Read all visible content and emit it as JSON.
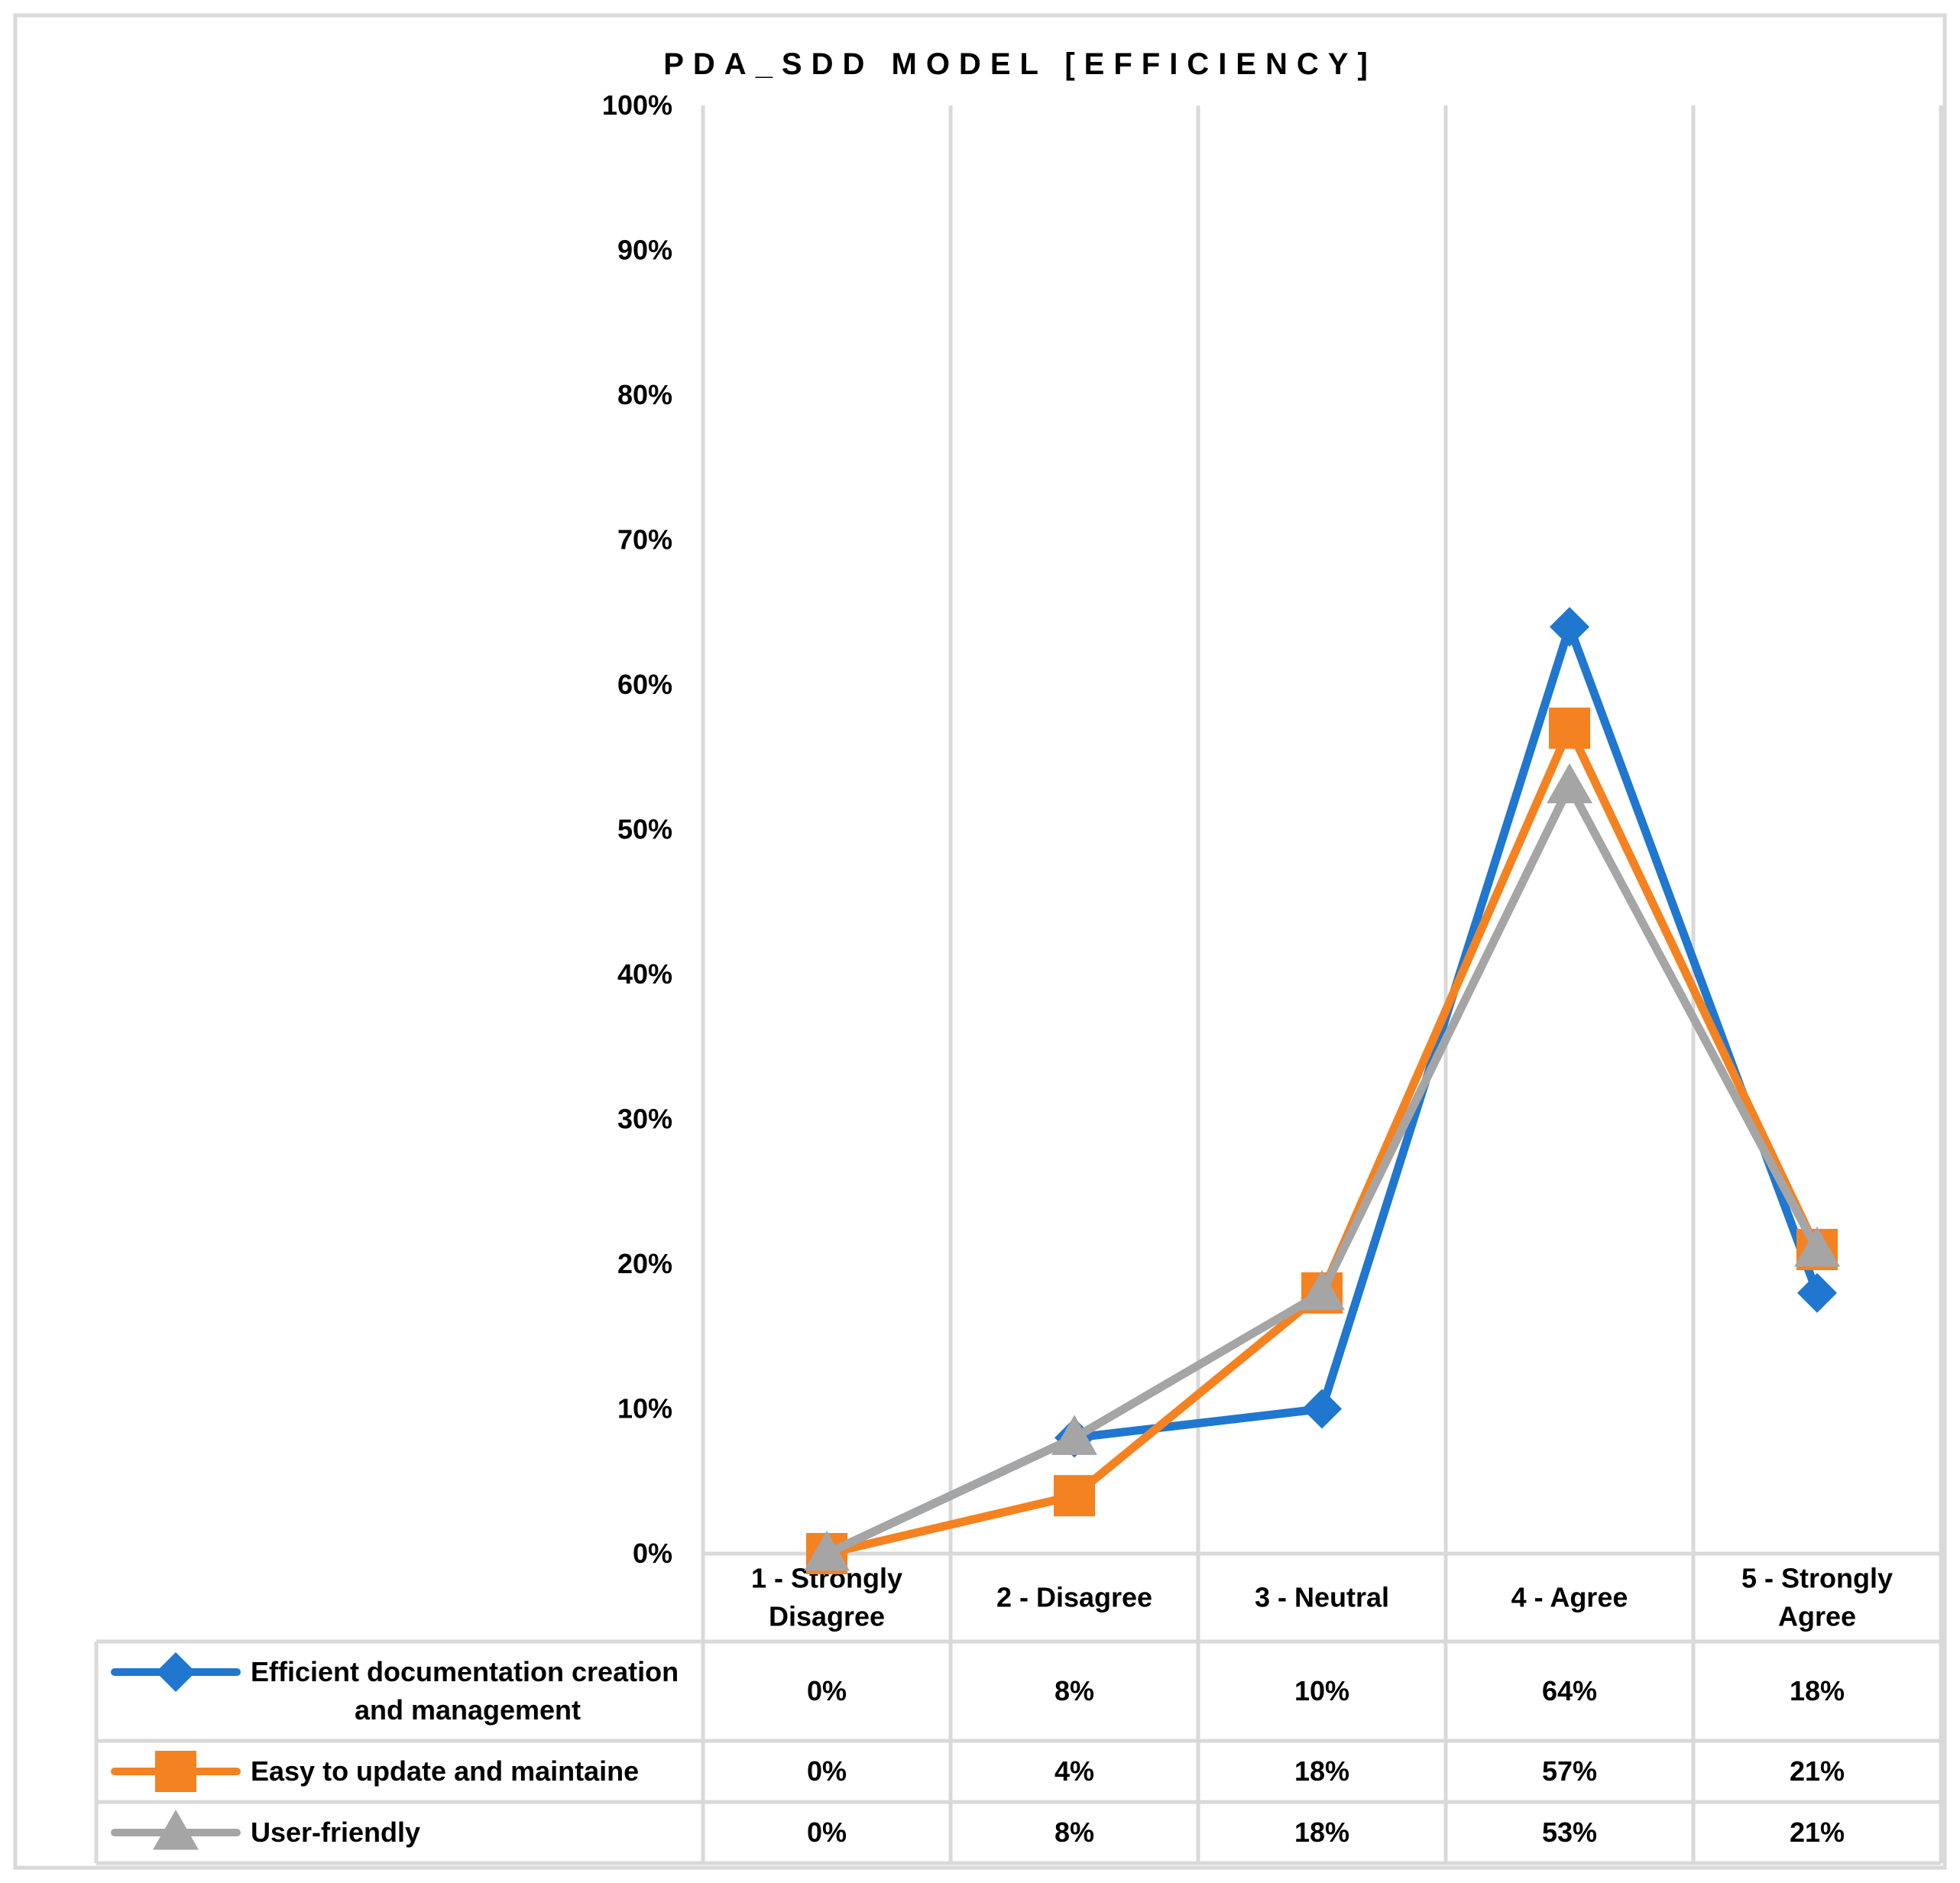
{
  "chart_data": {
    "type": "line",
    "title": "PDA_SDD MODEL [EFFICIENCY]",
    "categories": [
      [
        "1 - Strongly",
        "Disagree"
      ],
      [
        "2 - Disagree"
      ],
      [
        "3 - Neutral"
      ],
      [
        "4 - Agree"
      ],
      [
        "5 - Strongly",
        "Agree"
      ]
    ],
    "y_ticks": [
      "0%",
      "10%",
      "20%",
      "30%",
      "40%",
      "50%",
      "60%",
      "70%",
      "80%",
      "90%",
      "100%"
    ],
    "ylim": [
      0,
      100
    ],
    "grid": "vertical",
    "legend": "data-table",
    "series": [
      {
        "name": [
          "Efficient documentation creation",
          "and management"
        ],
        "values": [
          0,
          8,
          10,
          64,
          18
        ],
        "labels": [
          "0%",
          "8%",
          "10%",
          "64%",
          "18%"
        ],
        "color": "#1f77d0",
        "marker": "diamond"
      },
      {
        "name": [
          "Easy to update and maintaine"
        ],
        "values": [
          0,
          4,
          18,
          57,
          21
        ],
        "labels": [
          "0%",
          "4%",
          "18%",
          "57%",
          "21%"
        ],
        "color": "#f58220",
        "marker": "square"
      },
      {
        "name": [
          "User-friendly"
        ],
        "values": [
          0,
          8,
          18,
          53,
          21
        ],
        "labels": [
          "0%",
          "8%",
          "18%",
          "53%",
          "21%"
        ],
        "color": "#a5a5a5",
        "marker": "triangle"
      }
    ]
  }
}
